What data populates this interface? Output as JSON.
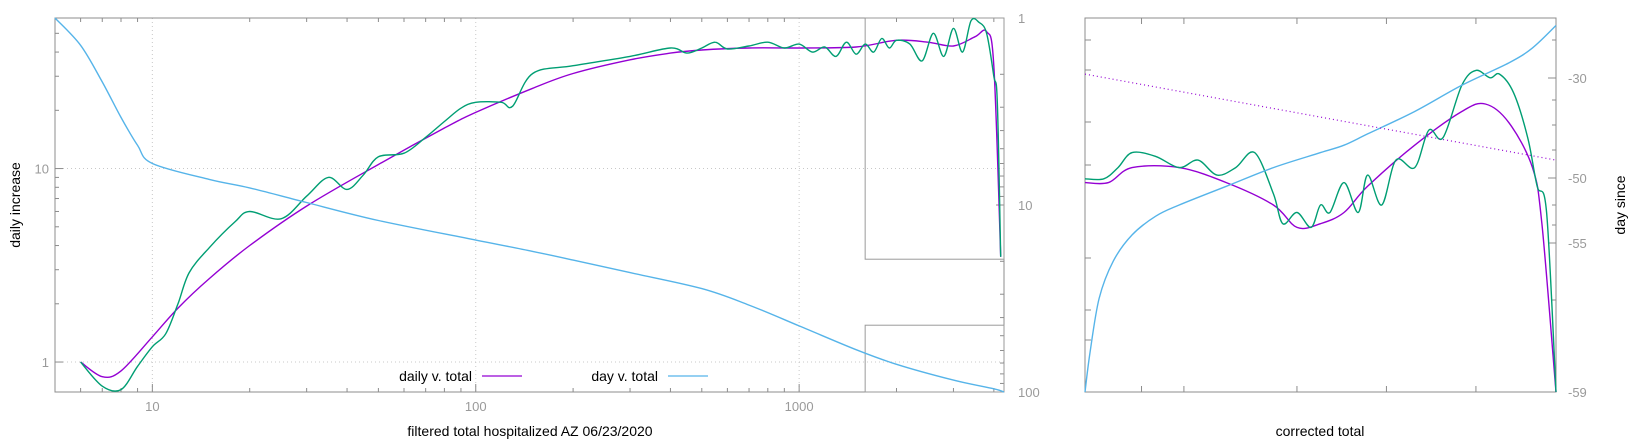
{
  "colors": {
    "daily_v_total": "#9400d3",
    "day_v_total": "#56b4e9",
    "raw_daily": "#009e73",
    "frame": "#8c8c8c"
  },
  "chart_data": [
    {
      "type": "line",
      "xlabel": "filtered total hospitalized AZ 06/23/2020",
      "ylabel": "daily increase",
      "x_scale": "log",
      "y_scale": "log",
      "xlim": [
        5,
        4300
      ],
      "ylim": [
        0.7,
        60
      ],
      "y2lim": [
        1,
        100
      ],
      "y2_scale": "log",
      "y2_reversed": true,
      "x_ticks": [
        "10",
        "100",
        "1000"
      ],
      "y_ticks": [
        "1",
        "10"
      ],
      "y2_ticks": [
        "1",
        "10",
        "100"
      ],
      "grid": true,
      "legend_position": "bottom-center",
      "legend": [
        "daily v. total",
        "day v. total"
      ],
      "series": [
        {
          "name": "daily v. total",
          "x": [
            6,
            7,
            8,
            10,
            12,
            15,
            20,
            30,
            50,
            80,
            100,
            150,
            200,
            300,
            400,
            500,
            700,
            1000,
            1500,
            2000,
            2500,
            3000,
            3500,
            3800,
            4000,
            4200
          ],
          "y": [
            1.0,
            0.84,
            0.9,
            1.35,
            1.9,
            2.7,
            4.0,
            6.4,
            10.5,
            16.2,
            19.5,
            26.0,
            31.0,
            36.5,
            39.5,
            41.0,
            42.0,
            42.0,
            42.5,
            46.0,
            45.0,
            43.0,
            48.0,
            51.0,
            34.0,
            3.5
          ]
        },
        {
          "name": "",
          "x": [
            6,
            7,
            8,
            9,
            10,
            11,
            12,
            13,
            15,
            18,
            20,
            25,
            30,
            35,
            40,
            45,
            50,
            60,
            70,
            80,
            90,
            100,
            120,
            130,
            150,
            200,
            300,
            400,
            450,
            500,
            550,
            600,
            700,
            800,
            900,
            1000,
            1100,
            1200,
            1300,
            1400,
            1500,
            1600,
            1700,
            1800,
            1900,
            2000,
            2200,
            2400,
            2600,
            2800,
            3000,
            3200,
            3400,
            3600,
            3800,
            4000,
            4100,
            4200
          ],
          "y": [
            1.0,
            0.75,
            0.72,
            0.95,
            1.2,
            1.4,
            2.0,
            2.9,
            3.9,
            5.3,
            6.0,
            5.5,
            7.2,
            9.0,
            7.8,
            9.3,
            11.5,
            12.0,
            14.5,
            17.5,
            20.5,
            22.0,
            22.0,
            21.0,
            31.0,
            34.0,
            38.0,
            42.0,
            39.5,
            42.0,
            45.0,
            41.5,
            43.0,
            45.0,
            42.0,
            44.0,
            40.0,
            42.5,
            38.0,
            45.0,
            39.0,
            44.0,
            40.0,
            47.0,
            42.0,
            46.0,
            44.0,
            36.0,
            50.0,
            38.0,
            53.0,
            40.0,
            58.0,
            57.0,
            50.0,
            30.0,
            22.0,
            3.5
          ]
        },
        {
          "name": "day v. total",
          "x": [
            5,
            6,
            7,
            8,
            9,
            10,
            15,
            20,
            30,
            50,
            100,
            150,
            200,
            300,
            500,
            700,
            1000,
            1500,
            2000,
            3000,
            4000,
            4300
          ],
          "y2": [
            1.0,
            1.4,
            2.2,
            3.4,
            4.8,
            6.0,
            7.3,
            8.1,
            9.7,
            12.1,
            15.4,
            17.7,
            19.7,
            23.0,
            28.0,
            34.3,
            44.3,
            59.4,
            71.1,
            86.4,
            96.1,
            100.0
          ]
        }
      ],
      "inset_boxes": [
        {
          "x": [
            1600,
            4300
          ],
          "y": [
            3.4,
            60
          ]
        },
        {
          "x": [
            1600,
            4300
          ],
          "y": [
            0.7,
            1.55
          ]
        }
      ]
    },
    {
      "type": "line",
      "xlabel": "corrected total",
      "ylabel": "day since",
      "y2_ticks": [
        "-30",
        "-50",
        "-55",
        "-59"
      ],
      "xlim": [
        0,
        1
      ],
      "y2_scale": "log",
      "y2_range": [
        -59,
        -24
      ],
      "series": [
        {
          "name": "",
          "x": [
            0.0,
            0.05,
            0.1,
            0.2,
            0.3,
            0.4,
            0.45,
            0.5,
            0.55,
            0.6,
            0.7,
            0.8,
            0.85,
            0.9,
            0.95,
            0.97,
            1.0
          ],
          "y": [
            0.56,
            0.56,
            0.6,
            0.6,
            0.56,
            0.5,
            0.44,
            0.45,
            0.48,
            0.55,
            0.66,
            0.75,
            0.77,
            0.72,
            0.6,
            0.45,
            0.0
          ]
        },
        {
          "name": "",
          "x": [
            0.0,
            0.04,
            0.07,
            0.1,
            0.15,
            0.2,
            0.24,
            0.28,
            0.32,
            0.36,
            0.4,
            0.42,
            0.45,
            0.48,
            0.5,
            0.52,
            0.55,
            0.58,
            0.6,
            0.63,
            0.66,
            0.7,
            0.73,
            0.76,
            0.8,
            0.83,
            0.86,
            0.88,
            0.91,
            0.94,
            0.96,
            0.98,
            1.0
          ],
          "y": [
            0.57,
            0.57,
            0.6,
            0.64,
            0.63,
            0.6,
            0.62,
            0.58,
            0.6,
            0.64,
            0.53,
            0.45,
            0.48,
            0.44,
            0.5,
            0.48,
            0.56,
            0.48,
            0.58,
            0.5,
            0.62,
            0.6,
            0.7,
            0.68,
            0.82,
            0.86,
            0.84,
            0.85,
            0.8,
            0.68,
            0.55,
            0.48,
            0.0
          ]
        },
        {
          "name": "",
          "x": [
            0.0,
            0.01,
            0.03,
            0.06,
            0.1,
            0.15,
            0.2,
            0.3,
            0.4,
            0.5,
            0.55,
            0.6,
            0.7,
            0.8,
            0.9,
            0.95,
            1.0
          ],
          "y": [
            0.0,
            0.1,
            0.25,
            0.35,
            0.42,
            0.47,
            0.5,
            0.55,
            0.6,
            0.64,
            0.66,
            0.69,
            0.75,
            0.82,
            0.88,
            0.92,
            0.98
          ]
        },
        {
          "name": "",
          "x": [
            0.0,
            1.0
          ],
          "y": [
            0.85,
            0.62
          ],
          "style": "dotted"
        }
      ]
    }
  ]
}
